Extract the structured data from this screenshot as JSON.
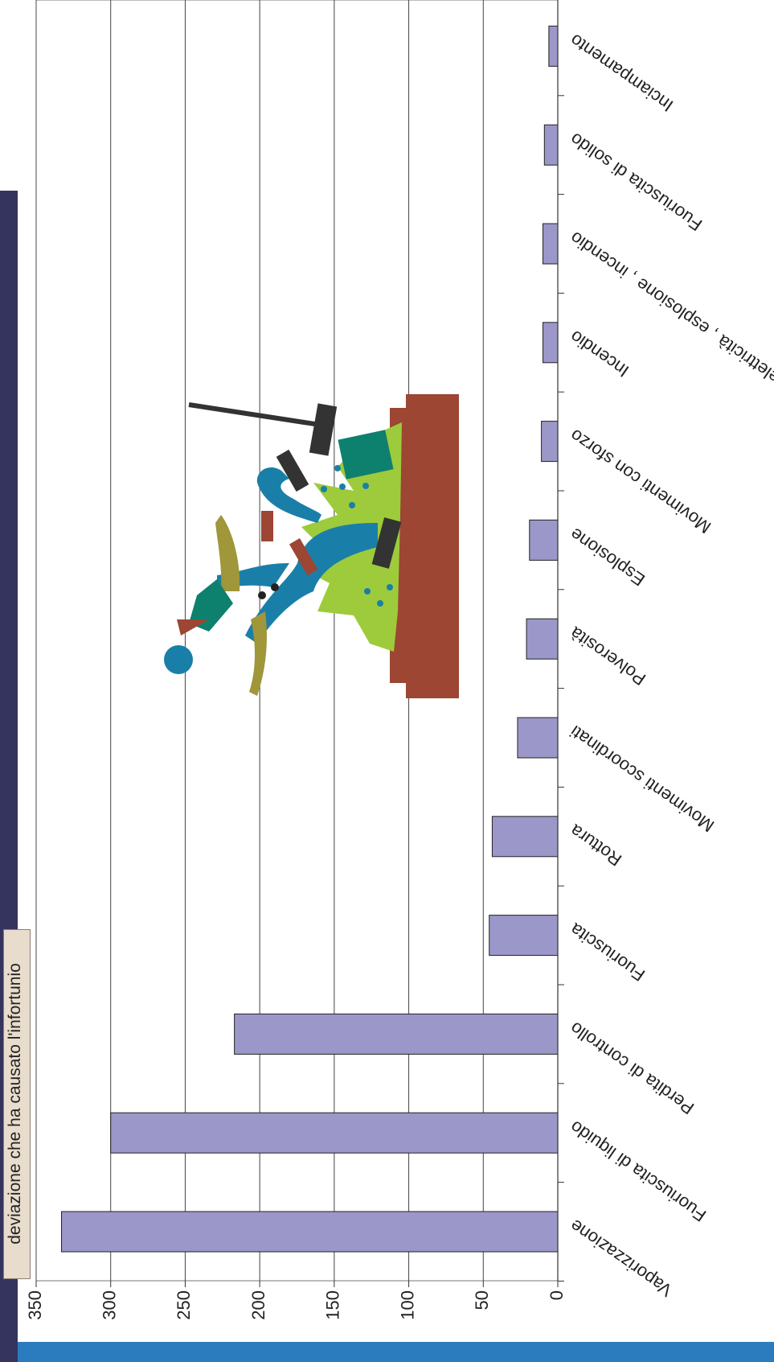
{
  "chart_data": {
    "type": "bar",
    "orientation": "horizontal",
    "rotation": "rotated 90 degrees counter-clockwise",
    "title": "deviazione che ha causato l'infortunio",
    "categories": [
      "Vaporizzazione",
      "Fuoriuscita di liquido",
      "Perdita di controllo",
      "Fuoriuscita",
      "Rottura",
      "Movimenti scoordinati",
      "Polverosità",
      "Esplosione",
      "Movimenti con sforzo",
      "Incendio",
      "elettricità , esplosione , incendio",
      "Fuoriuscita di solido",
      "Inciampamento"
    ],
    "values": [
      333,
      300,
      217,
      46,
      44,
      27,
      21,
      19,
      11,
      10,
      10,
      9,
      6
    ],
    "ylim": [
      0,
      350
    ],
    "yticks": [
      0,
      50,
      100,
      150,
      200,
      250,
      300,
      350
    ],
    "grid": true,
    "bar_color": "#9b97c9",
    "grid_color": "#444444"
  },
  "decor": {
    "illustration": "worker-hammer-explosion-clipart",
    "accent_blue": "#2b7bbf",
    "band_navy": "#35345f"
  }
}
